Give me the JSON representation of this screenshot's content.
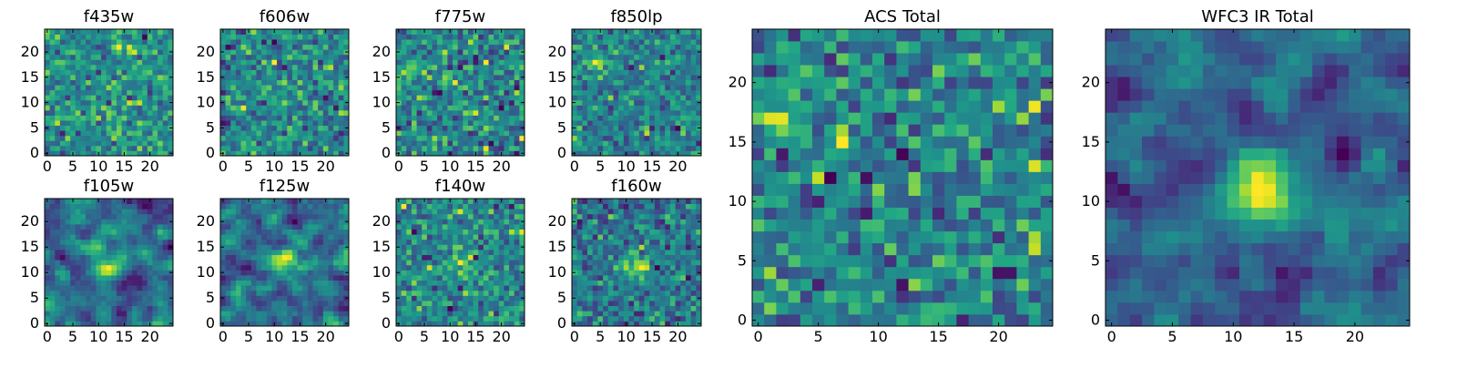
{
  "chart_data": [
    {
      "type": "heatmap",
      "title": "f435w",
      "xticks": [
        "0",
        "5",
        "10",
        "15",
        "20"
      ],
      "yticks": [
        "0",
        "5",
        "10",
        "15",
        "20"
      ],
      "xlim": [
        -0.5,
        24.5
      ],
      "ylim": [
        -0.5,
        24.5
      ],
      "grid_size": [
        25,
        25
      ],
      "colormap": "viridis",
      "grid": false,
      "description": "Noise-dominated field, no central source"
    },
    {
      "type": "heatmap",
      "title": "f606w",
      "xticks": [
        "0",
        "5",
        "10",
        "15",
        "20"
      ],
      "yticks": [
        "0",
        "5",
        "10",
        "15",
        "20"
      ],
      "xlim": [
        -0.5,
        24.5
      ],
      "ylim": [
        -0.5,
        24.5
      ],
      "grid_size": [
        25,
        25
      ],
      "colormap": "viridis",
      "grid": false
    },
    {
      "type": "heatmap",
      "title": "f775w",
      "xticks": [
        "0",
        "5",
        "10",
        "15",
        "20"
      ],
      "yticks": [
        "0",
        "5",
        "10",
        "15",
        "20"
      ],
      "xlim": [
        -0.5,
        24.5
      ],
      "ylim": [
        -0.5,
        24.5
      ],
      "grid_size": [
        25,
        25
      ],
      "colormap": "viridis",
      "grid": false
    },
    {
      "type": "heatmap",
      "title": "f850lp",
      "xticks": [
        "0",
        "5",
        "10",
        "15",
        "20"
      ],
      "yticks": [
        "0",
        "5",
        "10",
        "15",
        "20"
      ],
      "xlim": [
        -0.5,
        24.5
      ],
      "ylim": [
        -0.5,
        24.5
      ],
      "grid_size": [
        25,
        25
      ],
      "colormap": "viridis",
      "grid": false
    },
    {
      "type": "heatmap",
      "title": "f105w",
      "xticks": [
        "0",
        "5",
        "10",
        "15",
        "20"
      ],
      "yticks": [
        "0",
        "5",
        "10",
        "15",
        "20"
      ],
      "xlim": [
        -0.5,
        24.5
      ],
      "ylim": [
        -0.5,
        24.5
      ],
      "grid_size": [
        25,
        25
      ],
      "colormap": "viridis",
      "grid": false
    },
    {
      "type": "heatmap",
      "title": "f125w",
      "xticks": [
        "0",
        "5",
        "10",
        "15",
        "20"
      ],
      "yticks": [
        "0",
        "5",
        "10",
        "15",
        "20"
      ],
      "xlim": [
        -0.5,
        24.5
      ],
      "ylim": [
        -0.5,
        24.5
      ],
      "grid_size": [
        25,
        25
      ],
      "colormap": "viridis",
      "grid": false
    },
    {
      "type": "heatmap",
      "title": "f140w",
      "xticks": [
        "0",
        "5",
        "10",
        "15",
        "20"
      ],
      "yticks": [
        "0",
        "5",
        "10",
        "15",
        "20"
      ],
      "xlim": [
        -0.5,
        24.5
      ],
      "ylim": [
        -0.5,
        24.5
      ],
      "grid_size": [
        25,
        25
      ],
      "colormap": "viridis",
      "grid": false
    },
    {
      "type": "heatmap",
      "title": "f160w",
      "xticks": [
        "0",
        "5",
        "10",
        "15",
        "20"
      ],
      "yticks": [
        "0",
        "5",
        "10",
        "15",
        "20"
      ],
      "xlim": [
        -0.5,
        24.5
      ],
      "ylim": [
        -0.5,
        24.5
      ],
      "grid_size": [
        25,
        25
      ],
      "colormap": "viridis",
      "grid": false
    },
    {
      "type": "heatmap",
      "title": "ACS Total",
      "xticks": [
        "0",
        "5",
        "10",
        "15",
        "20"
      ],
      "yticks": [
        "0",
        "5",
        "10",
        "15",
        "20"
      ],
      "xlim": [
        -0.5,
        24.5
      ],
      "ylim": [
        -0.5,
        24.5
      ],
      "grid_size": [
        25,
        25
      ],
      "colormap": "viridis",
      "grid": false
    },
    {
      "type": "heatmap",
      "title": "WFC3 IR Total",
      "xticks": [
        "0",
        "5",
        "10",
        "15",
        "20"
      ],
      "yticks": [
        "0",
        "5",
        "10",
        "15",
        "20"
      ],
      "xlim": [
        -0.5,
        24.5
      ],
      "ylim": [
        -0.5,
        24.5
      ],
      "grid_size": [
        25,
        25
      ],
      "colormap": "viridis",
      "grid": false
    }
  ]
}
